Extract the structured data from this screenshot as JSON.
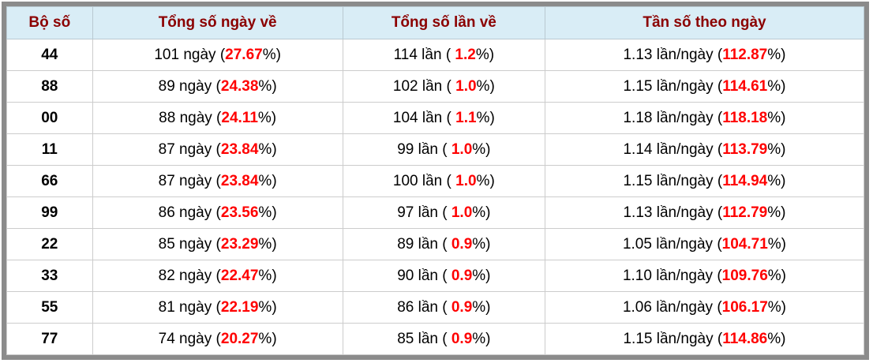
{
  "table": {
    "headers": [
      "Bộ số",
      "Tổng số ngày về",
      "Tổng số lần về",
      "Tần số theo ngày"
    ],
    "rows": [
      {
        "pair": "44",
        "days": {
          "pre": "101 ngày (",
          "pct": "27.67",
          "post": "%)"
        },
        "times": {
          "pre": "114 lần ( ",
          "pct": "1.2",
          "post": "%)"
        },
        "freq": {
          "pre": "1.13 lần/ngày (",
          "pct": "112.87",
          "post": "%)"
        }
      },
      {
        "pair": "88",
        "days": {
          "pre": "89 ngày (",
          "pct": "24.38",
          "post": "%)"
        },
        "times": {
          "pre": "102 lần ( ",
          "pct": "1.0",
          "post": "%)"
        },
        "freq": {
          "pre": "1.15 lần/ngày (",
          "pct": "114.61",
          "post": "%)"
        }
      },
      {
        "pair": "00",
        "days": {
          "pre": "88 ngày (",
          "pct": "24.11",
          "post": "%)"
        },
        "times": {
          "pre": "104 lần ( ",
          "pct": "1.1",
          "post": "%)"
        },
        "freq": {
          "pre": "1.18 lần/ngày (",
          "pct": "118.18",
          "post": "%)"
        }
      },
      {
        "pair": "11",
        "days": {
          "pre": "87 ngày (",
          "pct": "23.84",
          "post": "%)"
        },
        "times": {
          "pre": "99 lần ( ",
          "pct": "1.0",
          "post": "%)"
        },
        "freq": {
          "pre": "1.14 lần/ngày (",
          "pct": "113.79",
          "post": "%)"
        }
      },
      {
        "pair": "66",
        "days": {
          "pre": "87 ngày (",
          "pct": "23.84",
          "post": "%)"
        },
        "times": {
          "pre": "100 lần ( ",
          "pct": "1.0",
          "post": "%)"
        },
        "freq": {
          "pre": "1.15 lần/ngày (",
          "pct": "114.94",
          "post": "%)"
        }
      },
      {
        "pair": "99",
        "days": {
          "pre": "86 ngày (",
          "pct": "23.56",
          "post": "%)"
        },
        "times": {
          "pre": "97 lần ( ",
          "pct": "1.0",
          "post": "%)"
        },
        "freq": {
          "pre": "1.13 lần/ngày (",
          "pct": "112.79",
          "post": "%)"
        }
      },
      {
        "pair": "22",
        "days": {
          "pre": "85 ngày (",
          "pct": "23.29",
          "post": "%)"
        },
        "times": {
          "pre": "89 lần ( ",
          "pct": "0.9",
          "post": "%)"
        },
        "freq": {
          "pre": "1.05 lần/ngày (",
          "pct": "104.71",
          "post": "%)"
        }
      },
      {
        "pair": "33",
        "days": {
          "pre": "82 ngày (",
          "pct": "22.47",
          "post": "%)"
        },
        "times": {
          "pre": "90 lần ( ",
          "pct": "0.9",
          "post": "%)"
        },
        "freq": {
          "pre": "1.10 lần/ngày (",
          "pct": "109.76",
          "post": "%)"
        }
      },
      {
        "pair": "55",
        "days": {
          "pre": "81 ngày (",
          "pct": "22.19",
          "post": "%)"
        },
        "times": {
          "pre": "86 lần ( ",
          "pct": "0.9",
          "post": "%)"
        },
        "freq": {
          "pre": "1.06 lần/ngày (",
          "pct": "106.17",
          "post": "%)"
        }
      },
      {
        "pair": "77",
        "days": {
          "pre": "74 ngày (",
          "pct": "20.27",
          "post": "%)"
        },
        "times": {
          "pre": "85 lần ( ",
          "pct": "0.9",
          "post": "%)"
        },
        "freq": {
          "pre": "1.15 lần/ngày (",
          "pct": "114.86",
          "post": "%)"
        }
      }
    ]
  },
  "colors": {
    "frame_border": "#8b8b8b",
    "header_background": "#d9edf6",
    "header_text": "#8b0000",
    "percent_red": "#ff0000",
    "body_text": "#000000",
    "cell_border": "#cccccc"
  },
  "chart_data": {
    "type": "table",
    "title": "",
    "columns": [
      "Bộ số",
      "Tổng số ngày về",
      "Tổng số lần về",
      "Tần số theo ngày"
    ],
    "rows": [
      [
        "44",
        "101 ngày (27.67%)",
        "114 lần ( 1.2%)",
        "1.13 lần/ngày (112.87%)"
      ],
      [
        "88",
        "89 ngày (24.38%)",
        "102 lần ( 1.0%)",
        "1.15 lần/ngày (114.61%)"
      ],
      [
        "00",
        "88 ngày (24.11%)",
        "104 lần ( 1.1%)",
        "1.18 lần/ngày (118.18%)"
      ],
      [
        "11",
        "87 ngày (23.84%)",
        "99 lần ( 1.0%)",
        "1.14 lần/ngày (113.79%)"
      ],
      [
        "66",
        "87 ngày (23.84%)",
        "100 lần ( 1.0%)",
        "1.15 lần/ngày (114.94%)"
      ],
      [
        "99",
        "86 ngày (23.56%)",
        "97 lần ( 1.0%)",
        "1.13 lần/ngày (112.79%)"
      ],
      [
        "22",
        "85 ngày (23.29%)",
        "89 lần ( 0.9%)",
        "1.05 lần/ngày (104.71%)"
      ],
      [
        "33",
        "82 ngày (22.47%)",
        "90 lần ( 0.9%)",
        "1.10 lần/ngày (109.76%)"
      ],
      [
        "55",
        "81 ngày (22.19%)",
        "86 lần ( 0.9%)",
        "1.06 lần/ngày (106.17%)"
      ],
      [
        "77",
        "74 ngày (20.27%)",
        "85 lần ( 0.9%)",
        "1.15 lần/ngày (114.86%)"
      ]
    ]
  }
}
